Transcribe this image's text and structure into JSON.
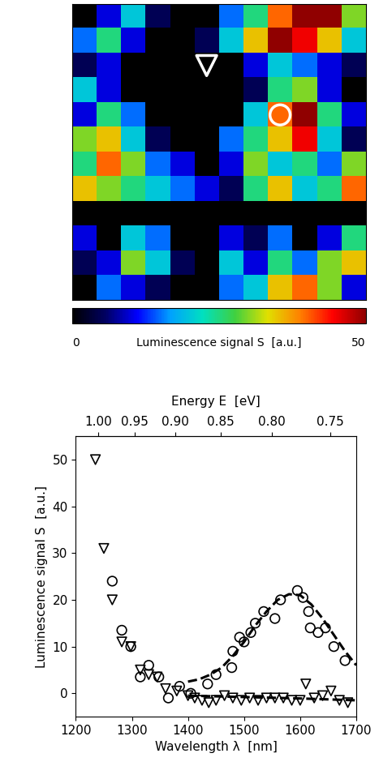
{
  "chart_data": [
    {
      "type": "heatmap",
      "tick_labels": false,
      "values": [
        [
          0,
          10,
          20,
          5,
          0,
          0,
          15,
          25,
          40,
          50,
          50,
          30
        ],
        [
          15,
          25,
          10,
          0,
          0,
          5,
          20,
          35,
          50,
          45,
          35,
          20
        ],
        [
          5,
          10,
          0,
          0,
          0,
          0,
          0,
          10,
          20,
          15,
          10,
          5
        ],
        [
          20,
          10,
          0,
          0,
          0,
          0,
          0,
          5,
          25,
          30,
          10,
          0
        ],
        [
          10,
          25,
          15,
          0,
          0,
          0,
          0,
          20,
          40,
          50,
          25,
          10
        ],
        [
          30,
          35,
          20,
          5,
          0,
          0,
          15,
          25,
          35,
          45,
          20,
          5
        ],
        [
          25,
          40,
          30,
          15,
          10,
          0,
          10,
          30,
          20,
          25,
          15,
          30
        ],
        [
          35,
          30,
          25,
          20,
          15,
          10,
          5,
          25,
          35,
          20,
          25,
          40
        ],
        [
          0,
          0,
          0,
          0,
          0,
          0,
          0,
          0,
          0,
          0,
          0,
          0
        ],
        [
          10,
          0,
          20,
          15,
          0,
          0,
          10,
          5,
          15,
          0,
          10,
          25
        ],
        [
          5,
          10,
          30,
          20,
          5,
          0,
          20,
          10,
          25,
          15,
          30,
          35
        ],
        [
          0,
          15,
          10,
          5,
          0,
          0,
          15,
          20,
          35,
          40,
          30,
          10
        ]
      ],
      "colorbar": {
        "label": "Luminescence signal S  [a.u.]",
        "clim": [
          0,
          50
        ],
        "ticks": [
          0,
          50
        ]
      },
      "points": [
        {
          "marker": "triangle",
          "x": 5,
          "y": 2
        },
        {
          "marker": "circle",
          "x": 8,
          "y": 4
        }
      ]
    },
    {
      "type": "scatter",
      "x_label": "Wavelength λ  [nm]",
      "y_label": "Luminescence signal S  [a.u.]",
      "x2_label": "Energy E  [eV]",
      "xlim": [
        1200,
        1700
      ],
      "xticks": [
        1200,
        1300,
        1400,
        1500,
        1600,
        1700
      ],
      "ylim": [
        -5,
        55
      ],
      "yticks": [
        0,
        10,
        20,
        30,
        40,
        50
      ],
      "x2ticks": [
        {
          "value": 1.0,
          "label": "1.00"
        },
        {
          "value": 0.95,
          "label": "0.95"
        },
        {
          "value": 0.9,
          "label": "0.90"
        },
        {
          "value": 0.85,
          "label": "0.85"
        },
        {
          "value": 0.8,
          "label": "0.80"
        },
        {
          "value": 0.75,
          "label": "0.75"
        }
      ],
      "series": [
        {
          "type": "scatter",
          "marker": "triangle",
          "color": "black",
          "x": [
            1235,
            1250,
            1265,
            1282,
            1298,
            1315,
            1330,
            1345,
            1360,
            1380,
            1400,
            1412,
            1425,
            1437,
            1450,
            1465,
            1480,
            1495,
            1510,
            1525,
            1540,
            1555,
            1570,
            1585,
            1600,
            1610,
            1625,
            1640,
            1655,
            1670,
            1685
          ],
          "values": [
            50,
            31,
            20,
            11,
            10,
            5,
            4,
            3.5,
            1,
            0.5,
            -0.5,
            -1,
            -1.5,
            -2,
            -1.5,
            -0.5,
            -1,
            -1.5,
            -1,
            -1.5,
            -1,
            -1,
            -1,
            -1.5,
            -1.5,
            2,
            -1,
            -0.5,
            0.5,
            -1.5,
            -2
          ]
        },
        {
          "type": "scatter",
          "marker": "circle",
          "color": "black",
          "x": [
            1265,
            1282,
            1298,
            1315,
            1330,
            1348,
            1365,
            1385,
            1405,
            1435,
            1450,
            1478,
            1480,
            1492,
            1500,
            1512,
            1520,
            1535,
            1555,
            1565,
            1595,
            1605,
            1615,
            1618,
            1632,
            1645,
            1660,
            1680
          ],
          "values": [
            24,
            13.5,
            10,
            3.5,
            6,
            3.5,
            -1,
            1.5,
            0,
            2,
            4,
            5.5,
            9,
            12,
            11,
            13,
            15,
            17.5,
            16,
            20,
            22,
            20.5,
            17.5,
            14,
            13,
            14,
            10,
            7
          ]
        },
        {
          "type": "line",
          "line_style": "dashed",
          "color": "black",
          "x": [
            1400,
            1420,
            1440,
            1460,
            1480,
            1500,
            1520,
            1540,
            1560,
            1580,
            1600,
            1620,
            1640,
            1660,
            1680,
            1700
          ],
          "values": [
            2.5,
            3.0,
            4.0,
            5.5,
            8.0,
            11.0,
            14.5,
            17.5,
            20.0,
            21.2,
            21.0,
            19.0,
            16.0,
            12.5,
            9.0,
            6.0
          ]
        },
        {
          "type": "line",
          "line_style": "dashed",
          "color": "black",
          "x": [
            1400,
            1500,
            1600,
            1700
          ],
          "values": [
            -0.5,
            -0.8,
            -1.1,
            -1.5
          ]
        }
      ]
    }
  ]
}
